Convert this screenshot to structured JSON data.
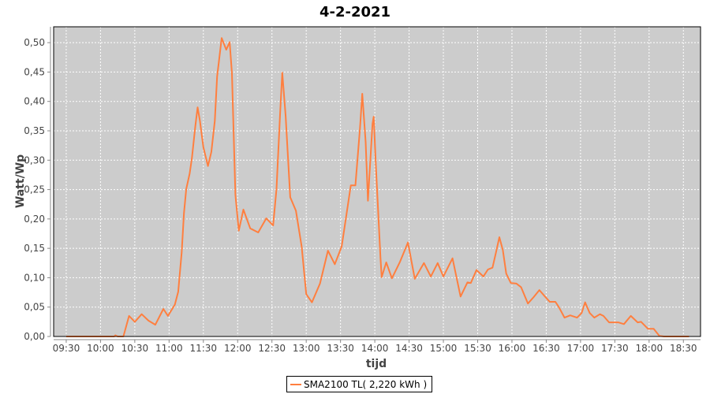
{
  "chart_data": {
    "type": "line",
    "title": "4-2-2021",
    "xlabel": "tijd",
    "ylabel": "Watt/Wp",
    "xlim": [
      "09:19",
      "18:45"
    ],
    "ylim": [
      0,
      0.527
    ],
    "x_ticks": [
      "09:30",
      "10:00",
      "10:30",
      "11:00",
      "11:30",
      "12:00",
      "12:30",
      "13:00",
      "13:30",
      "14:00",
      "14:30",
      "15:00",
      "15:30",
      "16:00",
      "16:30",
      "17:00",
      "17:30",
      "18:00",
      "18:30"
    ],
    "y_ticks": [
      "0,00",
      "0,05",
      "0,10",
      "0,15",
      "0,20",
      "0,25",
      "0,30",
      "0,35",
      "0,40",
      "0,45",
      "0,50"
    ],
    "grid": true,
    "legend_placement": "bottom",
    "colors": {
      "series": "#ff7f3f",
      "plot_background": "#cccccc",
      "grid": "#ffffff"
    },
    "series": [
      {
        "name": "SMA2100 TL( 2,220 kWh )",
        "points": [
          [
            "09:30",
            0
          ],
          [
            "10:12",
            0
          ],
          [
            "10:13",
            0.002
          ],
          [
            "10:15",
            0
          ],
          [
            "10:20",
            0
          ],
          [
            "10:25",
            0.035
          ],
          [
            "10:30",
            0.025
          ],
          [
            "10:36",
            0.038
          ],
          [
            "10:42",
            0.027
          ],
          [
            "10:48",
            0.02
          ],
          [
            "10:55",
            0.047
          ],
          [
            "10:59",
            0.035
          ],
          [
            "11:05",
            0.054
          ],
          [
            "11:08",
            0.076
          ],
          [
            "11:11",
            0.143
          ],
          [
            "11:13",
            0.21
          ],
          [
            "11:15",
            0.251
          ],
          [
            "11:18",
            0.277
          ],
          [
            "11:20",
            0.304
          ],
          [
            "11:23",
            0.358
          ],
          [
            "11:25",
            0.39
          ],
          [
            "11:27",
            0.367
          ],
          [
            "11:30",
            0.322
          ],
          [
            "11:34",
            0.29
          ],
          [
            "11:37",
            0.314
          ],
          [
            "11:40",
            0.367
          ],
          [
            "11:42",
            0.442
          ],
          [
            "11:46",
            0.508
          ],
          [
            "11:50",
            0.488
          ],
          [
            "11:53",
            0.501
          ],
          [
            "11:55",
            0.448
          ],
          [
            "11:58",
            0.241
          ],
          [
            "12:01",
            0.18
          ],
          [
            "12:05",
            0.216
          ],
          [
            "12:11",
            0.184
          ],
          [
            "12:18",
            0.177
          ],
          [
            "12:25",
            0.201
          ],
          [
            "12:31",
            0.189
          ],
          [
            "12:34",
            0.251
          ],
          [
            "12:37",
            0.375
          ],
          [
            "12:39",
            0.449
          ],
          [
            "12:42",
            0.375
          ],
          [
            "12:46",
            0.237
          ],
          [
            "12:51",
            0.214
          ],
          [
            "12:56",
            0.153
          ],
          [
            "13:00",
            0.072
          ],
          [
            "13:05",
            0.058
          ],
          [
            "13:12",
            0.09
          ],
          [
            "13:19",
            0.146
          ],
          [
            "13:25",
            0.123
          ],
          [
            "13:31",
            0.153
          ],
          [
            "13:39",
            0.257
          ],
          [
            "13:43",
            0.257
          ],
          [
            "13:47",
            0.354
          ],
          [
            "13:49",
            0.413
          ],
          [
            "13:52",
            0.331
          ],
          [
            "13:54",
            0.231
          ],
          [
            "13:58",
            0.362
          ],
          [
            "13:59",
            0.374
          ],
          [
            "14:01",
            0.287
          ],
          [
            "14:05",
            0.134
          ],
          [
            "14:06",
            0.101
          ],
          [
            "14:10",
            0.126
          ],
          [
            "14:15",
            0.099
          ],
          [
            "14:22",
            0.127
          ],
          [
            "14:29",
            0.16
          ],
          [
            "14:35",
            0.098
          ],
          [
            "14:43",
            0.125
          ],
          [
            "14:49",
            0.102
          ],
          [
            "14:55",
            0.125
          ],
          [
            "15:00",
            0.102
          ],
          [
            "15:08",
            0.133
          ],
          [
            "15:15",
            0.068
          ],
          [
            "15:21",
            0.092
          ],
          [
            "15:24",
            0.091
          ],
          [
            "15:29",
            0.113
          ],
          [
            "15:35",
            0.102
          ],
          [
            "15:39",
            0.114
          ],
          [
            "15:43",
            0.117
          ],
          [
            "15:46",
            0.143
          ],
          [
            "15:49",
            0.169
          ],
          [
            "15:52",
            0.147
          ],
          [
            "15:55",
            0.107
          ],
          [
            "15:59",
            0.091
          ],
          [
            "16:04",
            0.09
          ],
          [
            "16:08",
            0.084
          ],
          [
            "16:14",
            0.056
          ],
          [
            "16:19",
            0.067
          ],
          [
            "16:24",
            0.079
          ],
          [
            "16:28",
            0.07
          ],
          [
            "16:33",
            0.059
          ],
          [
            "16:38",
            0.059
          ],
          [
            "16:41",
            0.05
          ],
          [
            "16:46",
            0.032
          ],
          [
            "16:51",
            0.036
          ],
          [
            "16:57",
            0.032
          ],
          [
            "17:01",
            0.04
          ],
          [
            "17:04",
            0.058
          ],
          [
            "17:08",
            0.04
          ],
          [
            "17:12",
            0.032
          ],
          [
            "17:17",
            0.038
          ],
          [
            "17:20",
            0.035
          ],
          [
            "17:25",
            0.024
          ],
          [
            "17:33",
            0.024
          ],
          [
            "17:38",
            0.021
          ],
          [
            "17:44",
            0.035
          ],
          [
            "17:50",
            0.024
          ],
          [
            "17:53",
            0.025
          ],
          [
            "17:59",
            0.013
          ],
          [
            "18:04",
            0.013
          ],
          [
            "18:09",
            0.001
          ],
          [
            "18:13",
            0
          ],
          [
            "18:35",
            0
          ]
        ]
      }
    ]
  }
}
